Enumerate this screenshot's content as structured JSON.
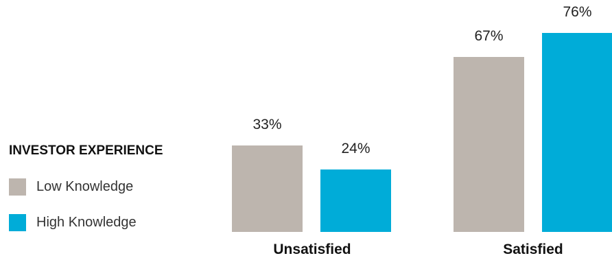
{
  "chart_data": {
    "type": "bar",
    "categories": [
      "Unsatisfied",
      "Satisfied"
    ],
    "series": [
      {
        "name": "Low Knowledge",
        "values": [
          33,
          67
        ],
        "color": "#bdb5ae"
      },
      {
        "name": "High Knowledge",
        "values": [
          24,
          76
        ],
        "color": "#00acd8"
      }
    ],
    "value_labels": [
      [
        "33%",
        "67%"
      ],
      [
        "24%",
        "76%"
      ]
    ],
    "legend": {
      "title": "INVESTOR EXPERIENCE",
      "placement": "left"
    },
    "ylim": [
      0,
      100
    ],
    "grid": false
  }
}
